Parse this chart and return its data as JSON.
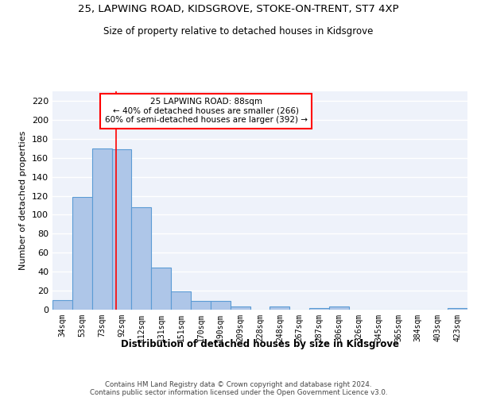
{
  "title1": "25, LAPWING ROAD, KIDSGROVE, STOKE-ON-TRENT, ST7 4XP",
  "title2": "Size of property relative to detached houses in Kidsgrove",
  "xlabel": "Distribution of detached houses by size in Kidsgrove",
  "ylabel": "Number of detached properties",
  "categories": [
    "34sqm",
    "53sqm",
    "73sqm",
    "92sqm",
    "112sqm",
    "131sqm",
    "151sqm",
    "170sqm",
    "190sqm",
    "209sqm",
    "228sqm",
    "248sqm",
    "267sqm",
    "287sqm",
    "306sqm",
    "326sqm",
    "345sqm",
    "365sqm",
    "384sqm",
    "403sqm",
    "423sqm"
  ],
  "values": [
    10,
    119,
    170,
    169,
    108,
    44,
    19,
    9,
    9,
    3,
    0,
    3,
    0,
    2,
    3,
    0,
    0,
    0,
    0,
    0,
    2
  ],
  "bar_color": "#aec6e8",
  "bar_edge_color": "#5b9bd5",
  "background_color": "#eef2fa",
  "grid_color": "#ffffff",
  "red_line_x": 2.73,
  "annotation_title": "25 LAPWING ROAD: 88sqm",
  "annotation_line1": "← 40% of detached houses are smaller (266)",
  "annotation_line2": "60% of semi-detached houses are larger (392) →",
  "annotation_box_color": "white",
  "annotation_box_edge": "red",
  "ylim": [
    0,
    230
  ],
  "yticks": [
    0,
    20,
    40,
    60,
    80,
    100,
    120,
    140,
    160,
    180,
    200,
    220
  ],
  "footer1": "Contains HM Land Registry data © Crown copyright and database right 2024.",
  "footer2": "Contains public sector information licensed under the Open Government Licence v3.0."
}
